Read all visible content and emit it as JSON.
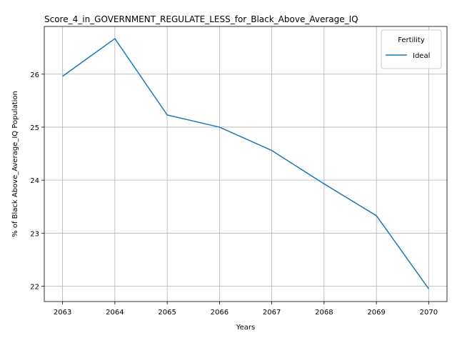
{
  "chart_data": {
    "type": "line",
    "title": "Score_4_in_GOVERNMENT_REGULATE_LESS_for_Black_Above_Average_IQ",
    "xlabel": "Years",
    "ylabel": "% of Black Above_Average_IQ Population",
    "x": [
      2063,
      2064,
      2065,
      2066,
      2067,
      2068,
      2069,
      2070
    ],
    "x_ticks": [
      "2063",
      "2064",
      "2065",
      "2066",
      "2067",
      "2068",
      "2069",
      "2070"
    ],
    "y_ticks": [
      "22",
      "23",
      "24",
      "25",
      "26"
    ],
    "xlim": [
      2062.65,
      2070.35
    ],
    "ylim": [
      21.71,
      26.9
    ],
    "grid": true,
    "legend": {
      "title": "Fertility",
      "placement": "top-right"
    },
    "series": [
      {
        "name": "Ideal",
        "color": "#1f77b4",
        "values": [
          25.96,
          26.67,
          25.23,
          25.0,
          24.56,
          23.93,
          23.33,
          21.95
        ]
      }
    ]
  }
}
